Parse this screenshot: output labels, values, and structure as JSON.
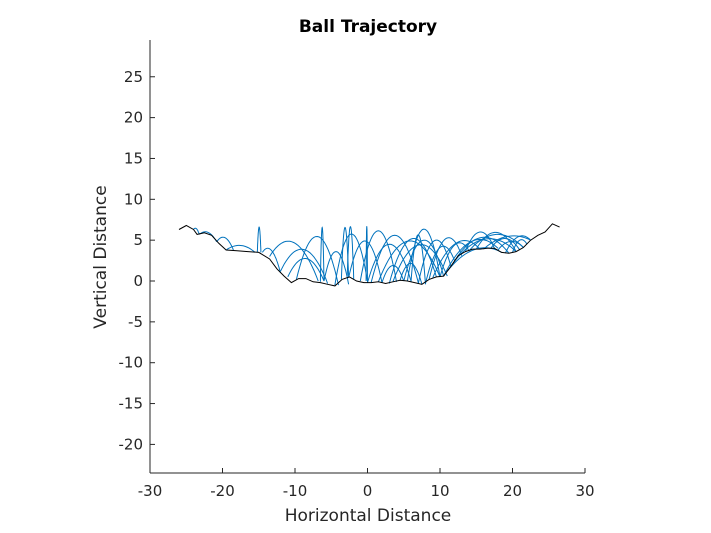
{
  "chart_data": {
    "type": "line",
    "title": "Ball Trajectory",
    "xlabel": "Horizontal Distance",
    "ylabel": "Vertical Distance",
    "xlim": [
      -30,
      30
    ],
    "ylim": [
      -23.5,
      29.5
    ],
    "xticks": [
      -30,
      -20,
      -10,
      0,
      10,
      20,
      30
    ],
    "yticks": [
      -20,
      -15,
      -10,
      -5,
      0,
      5,
      10,
      15,
      20,
      25
    ],
    "grid": false,
    "legend": "none",
    "colors": {
      "ground": "#000000",
      "trajectory": "#0072BD",
      "axes": "#262626"
    },
    "series": [
      {
        "role": "ground",
        "x": [
          -26,
          -25,
          -24,
          -23.5,
          -22.5,
          -21.5,
          -20.5,
          -19.5,
          -18,
          -16.5,
          -15,
          -13.5,
          -12.5,
          -11.5,
          -10.5,
          -9.5,
          -8.5,
          -7.5,
          -6.5,
          -5.5,
          -4.5,
          -3.5,
          -2.5,
          -1.5,
          -0.5,
          0.5,
          1.5,
          2.5,
          3.5,
          4.5,
          5.5,
          6.5,
          7.5,
          8.5,
          9.5,
          10.5,
          11.5,
          12.5,
          13.5,
          14.5,
          15.5,
          16.5,
          17.5,
          18.5,
          19.5,
          20.5,
          21.5,
          22.5,
          23.5,
          24.5,
          25.5,
          26.5
        ],
        "y": [
          6.3,
          6.8,
          6.3,
          5.7,
          5.9,
          5.6,
          4.6,
          3.8,
          3.7,
          3.6,
          3.5,
          2.7,
          1.5,
          0.6,
          -0.2,
          0.3,
          0.3,
          -0.1,
          -0.2,
          -0.4,
          -0.6,
          0.2,
          0.5,
          0.0,
          -0.2,
          -0.2,
          -0.1,
          -0.3,
          -0.1,
          0.1,
          0.0,
          -0.2,
          -0.4,
          0.2,
          0.5,
          0.6,
          1.8,
          3.1,
          3.6,
          3.9,
          3.9,
          4.0,
          4.0,
          3.5,
          3.4,
          3.6,
          4.1,
          5.0,
          5.6,
          6.0,
          7.0,
          6.6
        ]
      },
      {
        "role": "trajectory",
        "hops": [
          [
            -24.0,
            6.3,
            -23.2,
            5.7,
            6.7
          ],
          [
            -23.2,
            5.7,
            -20.8,
            4.8,
            6.4
          ],
          [
            -20.8,
            4.8,
            -18.5,
            3.8,
            5.8
          ],
          [
            -19.5,
            3.8,
            -15.5,
            3.5,
            4.5
          ],
          [
            -15.2,
            3.5,
            -14.7,
            3.5,
            6.6
          ],
          [
            -14.5,
            3.5,
            -12.0,
            1.0,
            5.0
          ],
          [
            -13.5,
            3.0,
            -6.8,
            0.0,
            6.2
          ],
          [
            -12.0,
            1.2,
            -5.5,
            -0.3,
            4.6
          ],
          [
            -11.0,
            0.5,
            -6.0,
            0.0,
            3.0
          ],
          [
            -9.8,
            0.2,
            -4.0,
            -0.5,
            5.8
          ],
          [
            -6.5,
            -0.1,
            -6.0,
            0.0,
            6.6
          ],
          [
            -6.0,
            0.0,
            -2.6,
            -0.4,
            3.8
          ],
          [
            -4.5,
            -0.5,
            0.0,
            0.0,
            6.0
          ],
          [
            -3.6,
            0.2,
            -2.6,
            0.5,
            6.7
          ],
          [
            -2.8,
            0.5,
            -1.9,
            0.2,
            6.8
          ],
          [
            -2.6,
            0.4,
            2.0,
            -0.2,
            5.2
          ],
          [
            -1.0,
            0.0,
            4.0,
            -0.1,
            6.2
          ],
          [
            -0.2,
            0.0,
            0.0,
            -0.2,
            6.8
          ],
          [
            0.0,
            -0.2,
            6.0,
            0.0,
            4.6
          ],
          [
            0.5,
            -0.2,
            7.0,
            -0.2,
            5.6
          ],
          [
            1.5,
            -0.1,
            10.0,
            0.5,
            5.2
          ],
          [
            2.0,
            -0.2,
            5.0,
            0.0,
            2.0
          ],
          [
            3.0,
            -0.3,
            9.5,
            0.5,
            5.6
          ],
          [
            3.5,
            -0.1,
            11.0,
            0.6,
            4.8
          ],
          [
            4.5,
            0.1,
            7.5,
            -0.4,
            2.4
          ],
          [
            5.0,
            0.0,
            10.5,
            0.6,
            5.3
          ],
          [
            5.5,
            0.0,
            10.0,
            0.5,
            6.6
          ],
          [
            6.0,
            -0.1,
            8.0,
            -0.4,
            5.8
          ],
          [
            7.0,
            -0.3,
            11.5,
            1.8,
            6.0
          ],
          [
            8.0,
            -0.3,
            12.0,
            2.5,
            5.5
          ],
          [
            8.5,
            0.2,
            13.0,
            3.1,
            6.6
          ],
          [
            9.0,
            0.4,
            15.5,
            3.9,
            6.4
          ],
          [
            10.0,
            0.5,
            14.0,
            3.7,
            6.0
          ],
          [
            10.5,
            0.6,
            18.0,
            4.0,
            6.5
          ],
          [
            11.0,
            1.2,
            18.5,
            3.5,
            5.0
          ],
          [
            11.5,
            1.8,
            20.5,
            3.6,
            6.0
          ],
          [
            12.5,
            3.1,
            19.5,
            3.4,
            5.5
          ],
          [
            13.5,
            3.6,
            17.5,
            4.0,
            6.2
          ],
          [
            14.0,
            3.7,
            21.5,
            4.1,
            5.9
          ],
          [
            15.0,
            3.9,
            20.5,
            3.6,
            6.1
          ],
          [
            16.0,
            3.9,
            22.5,
            5.0,
            6.0
          ],
          [
            17.0,
            4.0,
            21.0,
            3.8,
            5.3
          ],
          [
            18.0,
            3.8,
            21.5,
            4.1,
            5.0
          ],
          [
            19.0,
            3.4,
            22.5,
            5.0,
            6.2
          ],
          [
            20.0,
            3.5,
            22.0,
            4.5,
            5.5
          ]
        ]
      }
    ]
  }
}
